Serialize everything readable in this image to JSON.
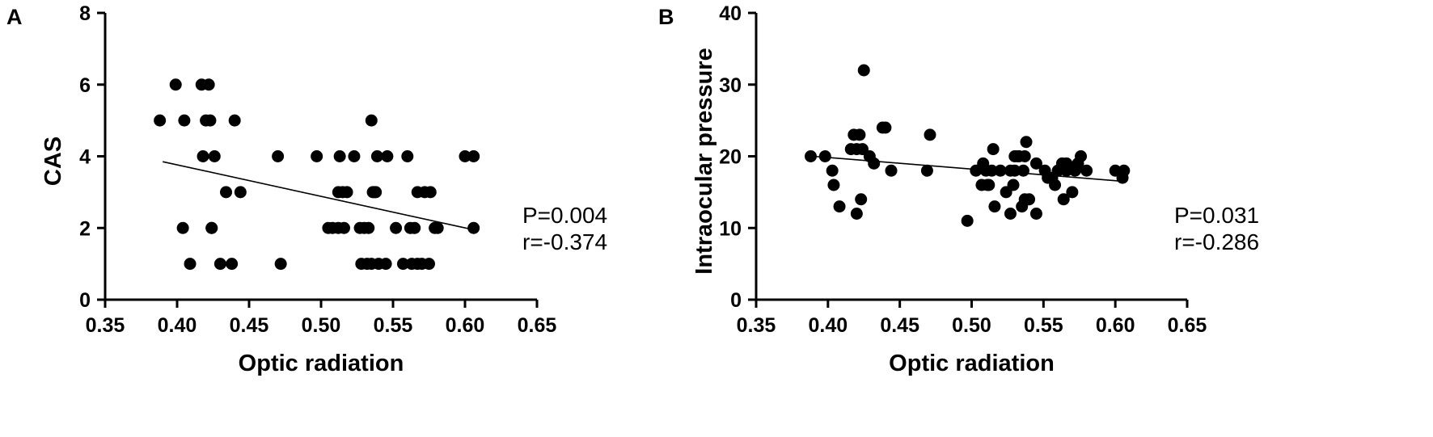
{
  "chart_data": [
    {
      "type": "scatter",
      "panel_label": "A",
      "title": "",
      "xlabel": "Optic radiation",
      "ylabel": "CAS",
      "xlim": [
        0.35,
        0.65
      ],
      "ylim": [
        0,
        8
      ],
      "xticks": [
        "0.35",
        "0.40",
        "0.45",
        "0.50",
        "0.55",
        "0.60",
        "0.65"
      ],
      "yticks": [
        "0",
        "2",
        "4",
        "6",
        "8"
      ],
      "grid": false,
      "regression_line": {
        "x": [
          0.39,
          0.606
        ],
        "y": [
          3.85,
          1.95
        ]
      },
      "annotations": [
        "P=0.004",
        "r=-0.374"
      ],
      "series": [
        {
          "x": [
            0.388,
            0.399,
            0.404,
            0.405,
            0.409,
            0.417,
            0.418,
            0.42,
            0.422,
            0.423,
            0.424,
            0.424,
            0.426,
            0.43,
            0.434,
            0.438,
            0.44,
            0.444,
            0.47,
            0.472,
            0.497,
            0.505,
            0.508,
            0.512,
            0.512,
            0.513,
            0.515,
            0.516,
            0.518,
            0.523,
            0.527,
            0.528,
            0.53,
            0.532,
            0.533,
            0.535,
            0.535,
            0.536,
            0.537,
            0.538,
            0.539,
            0.54,
            0.545,
            0.546,
            0.552,
            0.557,
            0.56,
            0.562,
            0.563,
            0.565,
            0.567,
            0.567,
            0.57,
            0.572,
            0.575,
            0.576,
            0.579,
            0.581,
            0.6,
            0.606,
            0.606
          ],
          "y": [
            5,
            6,
            2,
            5,
            1,
            6,
            4,
            5,
            6,
            5,
            2,
            2,
            4,
            1,
            3,
            1,
            5,
            3,
            4,
            1,
            4,
            2,
            2,
            3,
            2,
            4,
            3,
            2,
            3,
            4,
            2,
            1,
            2,
            1,
            2,
            1,
            5,
            3,
            3,
            3,
            4,
            1,
            1,
            4,
            2,
            1,
            4,
            2,
            1,
            2,
            1,
            3,
            1,
            3,
            1,
            3,
            2,
            2,
            4,
            2,
            4
          ]
        }
      ]
    },
    {
      "type": "scatter",
      "panel_label": "B",
      "title": "",
      "xlabel": "Optic radiation",
      "ylabel": "Intraocular pressure",
      "xlim": [
        0.35,
        0.65
      ],
      "ylim": [
        0,
        40
      ],
      "xticks": [
        "0.35",
        "0.40",
        "0.45",
        "0.50",
        "0.55",
        "0.60",
        "0.65"
      ],
      "yticks": [
        "0",
        "10",
        "20",
        "30",
        "40"
      ],
      "grid": false,
      "regression_line": {
        "x": [
          0.39,
          0.606
        ],
        "y": [
          20.0,
          16.5
        ]
      },
      "annotations": [
        "P=0.031",
        "r=-0.286"
      ],
      "series": [
        {
          "x": [
            0.388,
            0.398,
            0.403,
            0.404,
            0.408,
            0.416,
            0.418,
            0.42,
            0.42,
            0.422,
            0.423,
            0.424,
            0.425,
            0.429,
            0.432,
            0.438,
            0.44,
            0.444,
            0.469,
            0.471,
            0.497,
            0.503,
            0.507,
            0.508,
            0.51,
            0.511,
            0.512,
            0.514,
            0.515,
            0.516,
            0.52,
            0.524,
            0.527,
            0.527,
            0.529,
            0.53,
            0.53,
            0.532,
            0.533,
            0.535,
            0.536,
            0.537,
            0.537,
            0.538,
            0.54,
            0.545,
            0.545,
            0.551,
            0.553,
            0.556,
            0.558,
            0.56,
            0.563,
            0.564,
            0.566,
            0.566,
            0.57,
            0.572,
            0.574,
            0.576,
            0.58,
            0.6,
            0.605,
            0.606
          ],
          "y": [
            20,
            20,
            18,
            16,
            13,
            21,
            23,
            12,
            21,
            23,
            14,
            21,
            32,
            20,
            19,
            24,
            24,
            18,
            18,
            23,
            11,
            18,
            16,
            19,
            18,
            16,
            16,
            18,
            21,
            13,
            18,
            15,
            18,
            12,
            16,
            18,
            20,
            20,
            20,
            13,
            18,
            14,
            20,
            22,
            14,
            12,
            19,
            18,
            17,
            17,
            16,
            18,
            19,
            14,
            18,
            19,
            15,
            18,
            19,
            20,
            18,
            18,
            17,
            18
          ]
        }
      ]
    }
  ]
}
